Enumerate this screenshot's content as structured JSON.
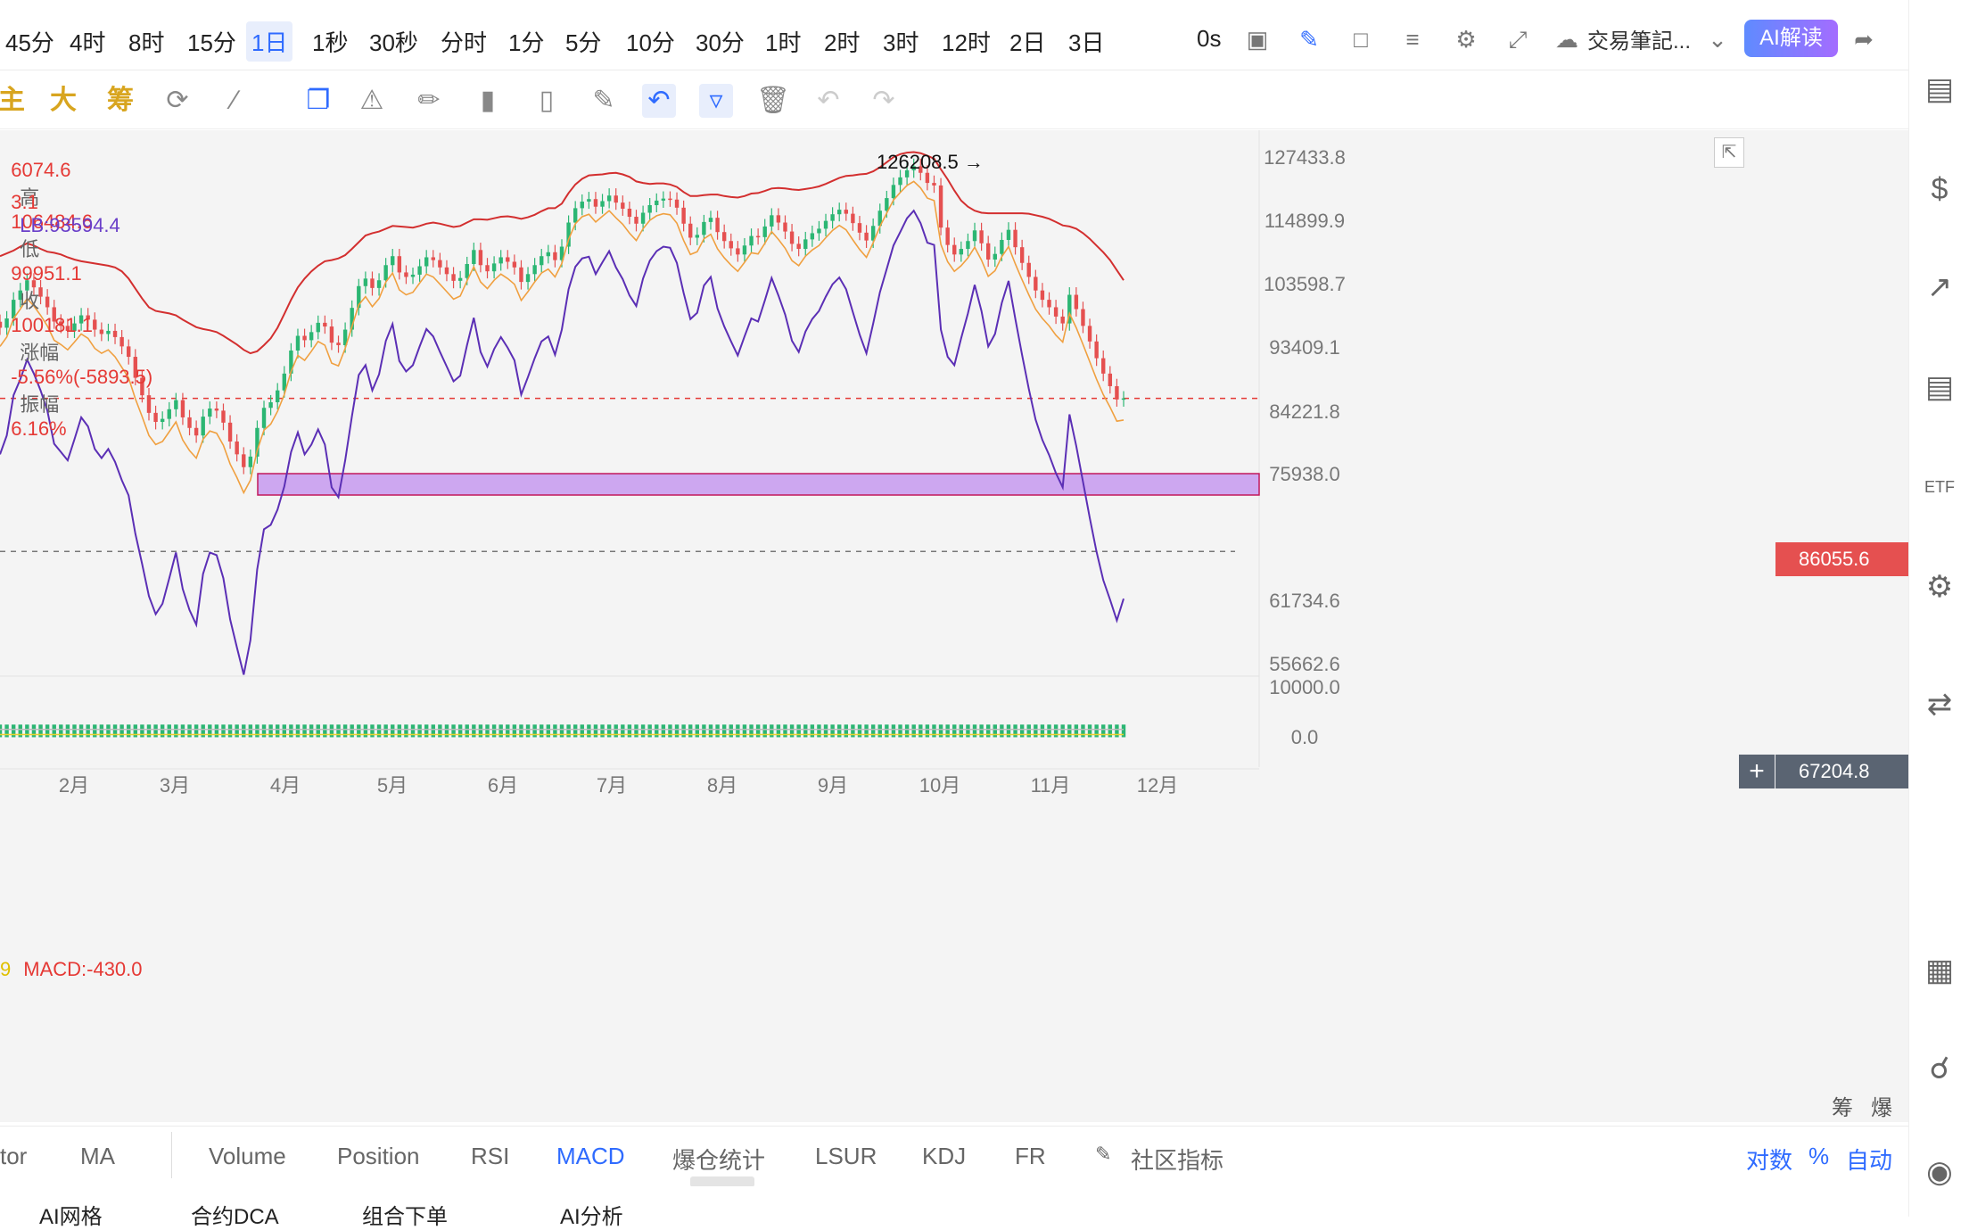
{
  "timeframes": [
    "45分",
    "4时",
    "8时",
    "15分",
    "1日",
    "1秒",
    "30秒",
    "分时",
    "1分",
    "5分",
    "10分",
    "30分",
    "1时",
    "2时",
    "3时",
    "12时",
    "2日",
    "3日"
  ],
  "active_timeframe": "1日",
  "top_right": {
    "zero_s": "0s",
    "trade_notes": "交易筆記...",
    "ai_label": "AI解读"
  },
  "drawing_tools": {
    "main": "主",
    "big": "大",
    "chip": "筹"
  },
  "ohlc": {
    "open_partial": "6074.6",
    "high_label": "高",
    "high": "106484.6",
    "low_label": "低",
    "low": "99951.1",
    "close_label": "收",
    "close": "100181.1",
    "change_label": "涨幅",
    "change": "-5.56%(-5893.5)",
    "amp_label": "振幅",
    "amp": "6.16%",
    "band_partial": "3.1",
    "lb": "LB:93594.4"
  },
  "macd_label": "MACD:-430.0",
  "macd_prefix": "9",
  "price_tags": {
    "current": "86055.6",
    "cursor": "67204.8"
  },
  "bottom_tabs": {
    "t0": "tor",
    "t1": "MA",
    "t2": "Volume",
    "t3": "Position",
    "t4": "RSI",
    "t5": "MACD",
    "t6": "爆仓统计",
    "t7": "LSUR",
    "t8": "KDJ",
    "t9": "FR",
    "t10": "社区指标",
    "r1": "对数",
    "r2": "%",
    "r3": "自动"
  },
  "axis_right_extra": {
    "chip": "筹",
    "burst": "爆"
  },
  "footer_tabs": {
    "f1": "AI网格",
    "f2": "合约DCA",
    "f3": "组合下单",
    "f4": "AI分析"
  },
  "chart_data": {
    "type": "candlestick",
    "title": "",
    "yticks": [
      127433.8,
      114899.9,
      103598.7,
      93409.1,
      84221.8,
      75938.0,
      61734.6,
      55662.6
    ],
    "ylim": [
      55662.6,
      127433.8
    ],
    "xticks": [
      "2月",
      "3月",
      "4月",
      "5月",
      "6月",
      "7月",
      "8月",
      "9月",
      "10月",
      "11月",
      "12月"
    ],
    "macd_yticks": [
      "10000.0",
      "0.0"
    ],
    "annotation": {
      "label": "126208.5 →",
      "value": 126208.5
    },
    "support_zone": [
      72500,
      75938.0
    ],
    "current_price": 86055.6,
    "cursor_price": 67204.8,
    "close_series": [
      96500,
      98000,
      101000,
      102500,
      104200,
      103000,
      101500,
      99800,
      97500,
      96800,
      96000,
      97200,
      98500,
      97800,
      96200,
      95500,
      96000,
      95000,
      93500,
      92000,
      89000,
      86500,
      84000,
      82800,
      83200,
      84500,
      85800,
      83400,
      82000,
      81000,
      83500,
      84600,
      84300,
      82700,
      80200,
      78500,
      76800,
      78200,
      82000,
      84700,
      85500,
      87200,
      89600,
      92900,
      95200,
      94500,
      95800,
      97300,
      96700,
      94100,
      93700,
      96200,
      99700,
      103200,
      104500,
      102900,
      104200,
      106900,
      108500,
      105600,
      104800,
      105200,
      106700,
      108300,
      107800,
      106500,
      105300,
      104100,
      104600,
      107100,
      109600,
      106900,
      105800,
      107200,
      108300,
      107500,
      106500,
      103900,
      105300,
      106900,
      108500,
      109200,
      107800,
      110200,
      114500,
      117300,
      118600,
      119100,
      117600,
      118700,
      119800,
      118400,
      117200,
      115600,
      114300,
      116400,
      117900,
      118800,
      119200,
      119000,
      117400,
      114300,
      111800,
      112300,
      114600,
      115400,
      112800,
      111200,
      109900,
      108800,
      110400,
      112100,
      111900,
      113800,
      115900,
      114500,
      112900,
      110700,
      109800,
      111500,
      112600,
      113400,
      114800,
      116100,
      117000,
      116200,
      114400,
      112700,
      111300,
      113900,
      116800,
      119300,
      121900,
      123400,
      124800,
      125600,
      124300,
      122300,
      121800,
      113600,
      110500,
      108800,
      109800,
      111200,
      113100,
      110800,
      107900,
      108900,
      111400,
      113200,
      110100,
      107300,
      104800,
      102500,
      101000,
      99800,
      98300,
      97200,
      101800,
      99500,
      96800,
      94300,
      91800,
      89600,
      87800,
      85900,
      86055.6
    ],
    "ub_series": [
      108500,
      109000,
      109500,
      110200,
      110800,
      110400,
      109800,
      109300,
      109100,
      108800,
      108300,
      107900,
      107600,
      107400,
      107200,
      107000,
      106800,
      106500,
      105800,
      104500,
      102800,
      101200,
      99800,
      99200,
      99000,
      98800,
      98500,
      97800,
      97200,
      96600,
      96300,
      96100,
      95800,
      95200,
      94500,
      93800,
      93000,
      92500,
      92800,
      93700,
      94800,
      96500,
      98700,
      101000,
      103000,
      104500,
      105800,
      106800,
      107600,
      107800,
      108100,
      108700,
      109800,
      111000,
      112200,
      112600,
      112900,
      113400,
      113900,
      113800,
      113700,
      113600,
      113900,
      114300,
      114500,
      114300,
      114000,
      113700,
      113900,
      114500,
      115100,
      115100,
      115000,
      115300,
      115600,
      115700,
      115500,
      115200,
      115500,
      116000,
      116700,
      117300,
      117300,
      118200,
      120300,
      122000,
      123100,
      123800,
      123900,
      124000,
      124200,
      124300,
      124000,
      123500,
      122600,
      122300,
      122100,
      122200,
      122200,
      122000,
      121500,
      120500,
      119700,
      119700,
      119900,
      120000,
      120000,
      119700,
      119500,
      119400,
      119700,
      120200,
      120300,
      120700,
      121200,
      121300,
      121200,
      121000,
      120900,
      121100,
      121300,
      121600,
      122100,
      122700,
      123300,
      123700,
      123800,
      124000,
      124100,
      124600,
      125400,
      126400,
      127400,
      128000,
      128300,
      128400,
      128200,
      127700,
      127100,
      125000,
      123000,
      120800,
      118800,
      117600,
      116800,
      116400,
      116300,
      116300,
      116300,
      116300,
      116300,
      116300,
      116200,
      115900,
      115600,
      115200,
      114600,
      114000,
      113800,
      113400,
      112600,
      111600,
      110400,
      109200,
      107800,
      106000,
      104200
    ]
  }
}
